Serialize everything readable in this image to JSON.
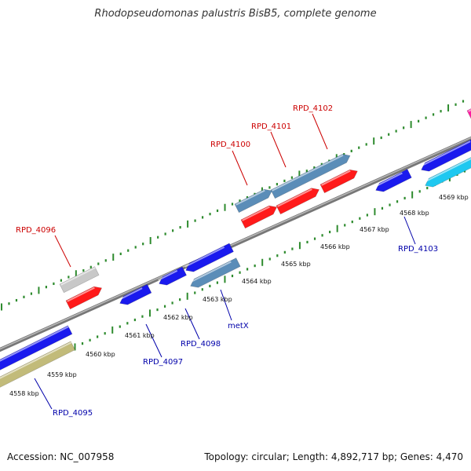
{
  "title": "Rhodopseudomonas palustris BisB5, complete genome",
  "footer": {
    "accession": "Accession: NC_007958",
    "summary": "Topology: circular; Length: 4,892,717 bp; Genes: 4,470"
  },
  "colors": {
    "backbone": "#888888",
    "tick": "#2e8b2e",
    "label_forward": "#cc0000",
    "label_reverse": "#0000aa"
  },
  "scale_ticks": [
    "4558 kbp",
    "4559 kbp",
    "4560 kbp",
    "4561 kbp",
    "4562 kbp",
    "4563 kbp",
    "4564 kbp",
    "4565 kbp",
    "4566 kbp",
    "4567 kbp",
    "4568 kbp",
    "4569 kbp"
  ],
  "gene_labels": [
    {
      "text": "RPD_4096",
      "strand": "forward"
    },
    {
      "text": "RPD_4100",
      "strand": "forward"
    },
    {
      "text": "RPD_4101",
      "strand": "forward"
    },
    {
      "text": "RPD_4102",
      "strand": "forward"
    },
    {
      "text": "RPD_4095",
      "strand": "reverse"
    },
    {
      "text": "RPD_4097",
      "strand": "reverse"
    },
    {
      "text": "RPD_4098",
      "strand": "reverse"
    },
    {
      "text": "metX",
      "strand": "reverse"
    },
    {
      "text": "RPD_4103",
      "strand": "reverse"
    }
  ]
}
